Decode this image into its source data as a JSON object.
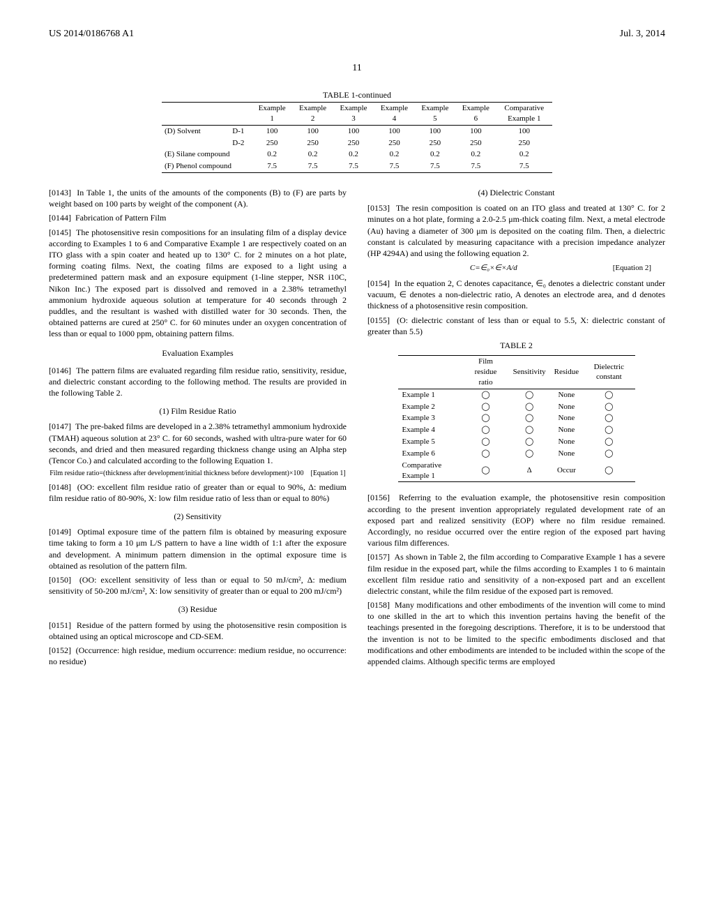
{
  "header": {
    "left": "US 2014/0186768 A1",
    "right": "Jul. 3, 2014"
  },
  "pagenum": "11",
  "table1": {
    "caption": "TABLE 1-continued",
    "col_headers": [
      "",
      "",
      "Example 1",
      "Example 2",
      "Example 3",
      "Example 4",
      "Example 5",
      "Example 6",
      "Comparative Example 1"
    ],
    "rows": [
      [
        "(D) Solvent",
        "D-1",
        "100",
        "100",
        "100",
        "100",
        "100",
        "100",
        "100"
      ],
      [
        "",
        "D-2",
        "250",
        "250",
        "250",
        "250",
        "250",
        "250",
        "250"
      ],
      [
        "(E) Silane compound",
        "",
        "0.2",
        "0.2",
        "0.2",
        "0.2",
        "0.2",
        "0.2",
        "0.2"
      ],
      [
        "(F) Phenol compound",
        "",
        "7.5",
        "7.5",
        "7.5",
        "7.5",
        "7.5",
        "7.5",
        "7.5"
      ]
    ]
  },
  "paragraphs": {
    "p0143": "In Table 1, the units of the amounts of the components (B) to (F) are parts by weight based on 100 parts by weight of the component (A).",
    "p0144": "Fabrication of Pattern Film",
    "p0145": "The photosensitive resin compositions for an insulating film of a display device according to Examples 1 to 6 and Comparative Example 1 are respectively coated on an ITO glass with a spin coater and heated up to 130° C. for 2 minutes on a hot plate, forming coating films. Next, the coating films are exposed to a light using a predetermined pattern mask and an exposure equipment (1-line stepper, NSR i10C, Nikon Inc.) The exposed part is dissolved and removed in a 2.38% tetramethyl ammonium hydroxide aqueous solution at temperature for 40 seconds through 2 puddles, and the resultant is washed with distilled water for 30 seconds. Then, the obtained patterns are cured at 250° C. for 60 minutes under an oxygen concentration of less than or equal to 1000 ppm, obtaining pattern films.",
    "eval_heading": "Evaluation Examples",
    "p0146": "The pattern films are evaluated regarding film residue ratio, sensitivity, residue, and dielectric constant according to the following method. The results are provided in the following Table 2.",
    "sub1": "(1) Film Residue Ratio",
    "p0147": "The pre-baked films are developed in a 2.38% tetramethyl ammonium hydroxide (TMAH) aqueous solution at 23° C. for 60 seconds, washed with ultra-pure water for 60 seconds, and dried and then measured regarding thickness change using an Alpha step (Tencor Co.) and calculated according to the following Equation 1.",
    "eq1_text": "Film residue ratio=(thickness after development/initial thickness before development)×100",
    "eq1_tag": "[Equation 1]",
    "p0148": "(OO: excellent film residue ratio of greater than or equal to 90%, Δ: medium film residue ratio of 80-90%, X: low film residue ratio of less than or equal to 80%)",
    "sub2": "(2) Sensitivity",
    "p0149": "Optimal exposure time of the pattern film is obtained by measuring exposure time taking to form a 10 μm L/S pattern to have a line width of 1:1 after the exposure and development. A minimum pattern dimension in the optimal exposure time is obtained as resolution of the pattern film.",
    "p0150": "(OO: excellent sensitivity of less than or equal to 50 mJ/cm², Δ: medium sensitivity of 50-200 mJ/cm², X: low sensitivity of greater than or equal to 200 mJ/cm²)",
    "sub3": "(3) Residue",
    "p0151": "Residue of the pattern formed by using the photosensitive resin composition is obtained using an optical microscope and CD-SEM.",
    "p0152": "(Occurrence: high residue, medium occurrence: medium residue, no occurrence: no residue)",
    "sub4": "(4) Dielectric Constant",
    "p0153": "The resin composition is coated on an ITO glass and treated at 130° C. for 2 minutes on a hot plate, forming a 2.0-2.5 μm-thick coating film. Next, a metal electrode (Au) having a diameter of 300 μm is deposited on the coating film. Then, a dielectric constant is calculated by measuring capacitance with a precision impedance analyzer (HP 4294A) and using the following equation 2.",
    "eq2_text": "C=∈₀×∈×A/d",
    "eq2_tag": "[Equation 2]",
    "p0154": "In the equation 2, C denotes capacitance, ∈₀ denotes a dielectric constant under vacuum, ∈ denotes a non-dielectric ratio, A denotes an electrode area, and d denotes thickness of a photosensitive resin composition.",
    "p0155": "(O: dielectric constant of less than or equal to 5.5, X: dielectric constant of greater than 5.5)",
    "p0156": "Referring to the evaluation example, the photosensitive resin composition according to the present invention appropriately regulated development rate of an exposed part and realized sensitivity (EOP) where no film residue remained. Accordingly, no residue occurred over the entire region of the exposed part having various film differences.",
    "p0157": "As shown in Table 2, the film according to Comparative Example 1 has a severe film residue in the exposed part, while the films according to Examples 1 to 6 maintain excellent film residue ratio and sensitivity of a non-exposed part and an excellent dielectric constant, while the film residue of the exposed part is removed.",
    "p0158": "Many modifications and other embodiments of the invention will come to mind to one skilled in the art to which this invention pertains having the benefit of the teachings presented in the foregoing descriptions. Therefore, it is to be understood that the invention is not to be limited to the specific embodiments disclosed and that modifications and other embodiments are intended to be included within the scope of the appended claims. Although specific terms are employed"
  },
  "table2": {
    "caption": "TABLE 2",
    "headers": [
      "",
      "Film residue ratio",
      "Sensitivity",
      "Residue",
      "Dielectric constant"
    ],
    "rows": [
      [
        "Example 1",
        "◯",
        "◯",
        "None",
        "◯"
      ],
      [
        "Example 2",
        "◯",
        "◯",
        "None",
        "◯"
      ],
      [
        "Example 3",
        "◯",
        "◯",
        "None",
        "◯"
      ],
      [
        "Example 4",
        "◯",
        "◯",
        "None",
        "◯"
      ],
      [
        "Example 5",
        "◯",
        "◯",
        "None",
        "◯"
      ],
      [
        "Example 6",
        "◯",
        "◯",
        "None",
        "◯"
      ],
      [
        "Comparative Example 1",
        "◯",
        "Δ",
        "Occur",
        "◯"
      ]
    ]
  }
}
